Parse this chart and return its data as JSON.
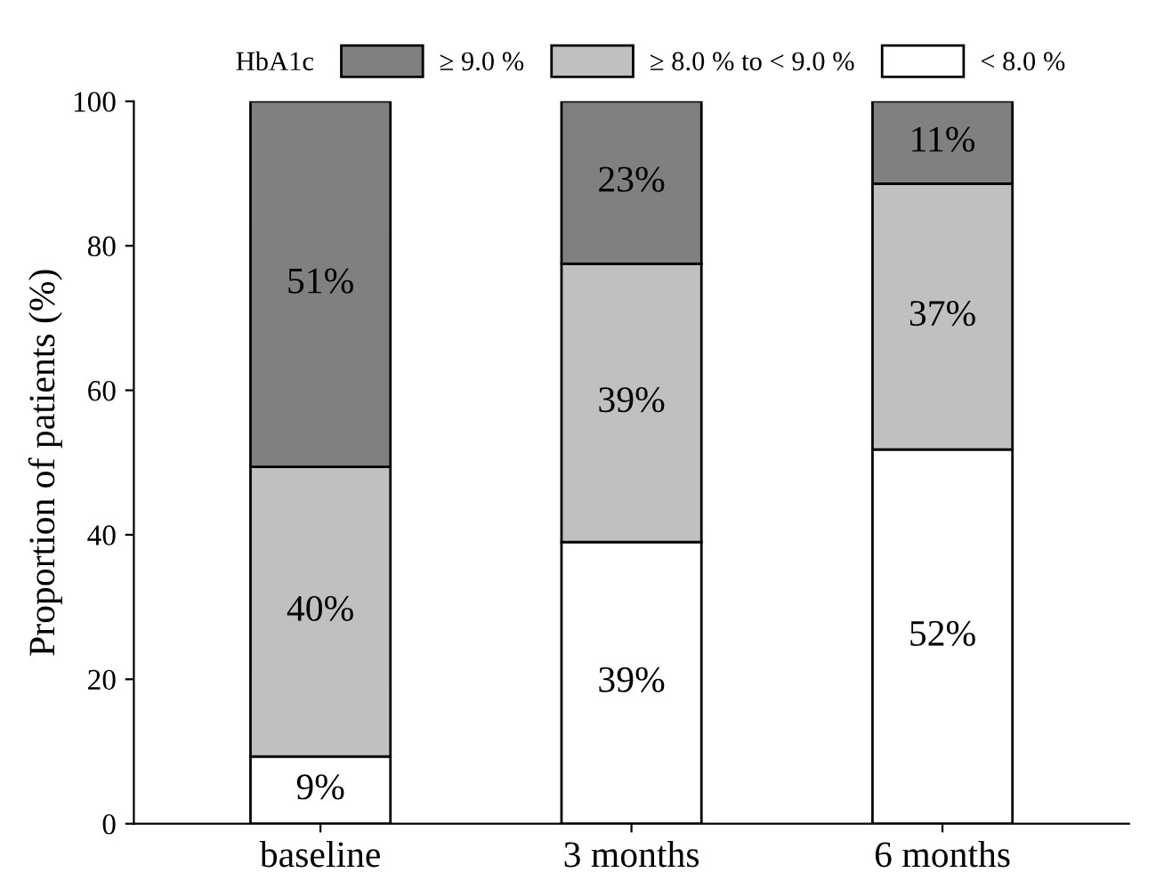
{
  "chart_data": {
    "type": "bar",
    "stacked": true,
    "ylabel": "Proportion of patients (%)",
    "legend_title": "HbA1c",
    "legend": "top",
    "categories": [
      "baseline",
      "3 months",
      "6 months"
    ],
    "series": [
      {
        "name": "< 8.0 %",
        "color": "#ffffff",
        "values": [
          9.3,
          39.0,
          51.8
        ],
        "value_labels": [
          "9%",
          "39%",
          "52%"
        ]
      },
      {
        "name": "≥ 8.0 % to < 9.0 %",
        "color": "#c0c0c0",
        "values": [
          40.1,
          38.5,
          36.8
        ],
        "value_labels": [
          "40%",
          "39%",
          "37%"
        ]
      },
      {
        "name": "≥ 9.0 %",
        "color": "#808080",
        "values": [
          50.6,
          22.5,
          11.4
        ],
        "value_labels": [
          "51%",
          "23%",
          "11%"
        ]
      }
    ],
    "ylim": [
      0,
      100
    ],
    "yticks": [
      0,
      20,
      40,
      60,
      80,
      100
    ],
    "grid": false
  }
}
